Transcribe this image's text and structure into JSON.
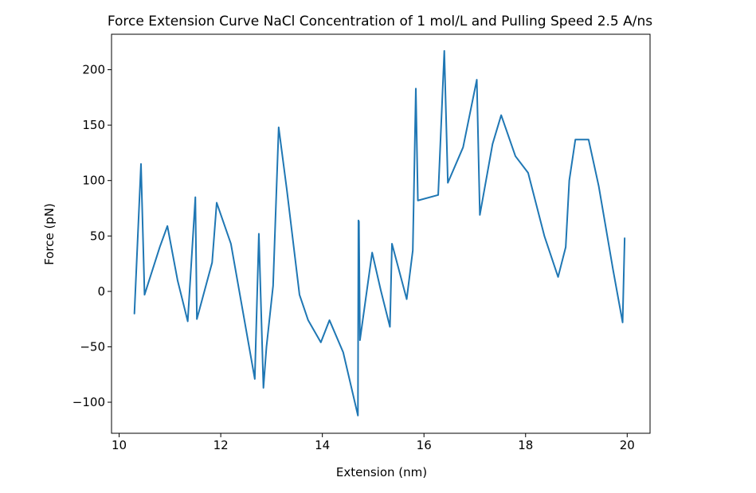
{
  "chart_data": {
    "type": "line",
    "title": "Force Extension Curve NaCl Concentration of 1 mol/L and Pulling Speed 2.5 A/ns",
    "xlabel": "Extension (nm)",
    "ylabel": "Force (pN)",
    "xlim": [
      9.85,
      20.45
    ],
    "ylim": [
      -128,
      232
    ],
    "xticks": [
      10,
      12,
      14,
      16,
      18,
      20
    ],
    "yticks": [
      -100,
      -50,
      0,
      50,
      100,
      150,
      200
    ],
    "xtick_labels": [
      "10",
      "12",
      "14",
      "16",
      "18",
      "20"
    ],
    "ytick_labels": [
      "−100",
      "−50",
      "0",
      "50",
      "100",
      "150",
      "200"
    ],
    "grid": false,
    "series_color": "#1f77b4",
    "series": [
      {
        "x": [
          10.3,
          10.43,
          10.5,
          10.8,
          10.95,
          11.15,
          11.35,
          11.5,
          11.53,
          11.83,
          11.92,
          12.2,
          12.67,
          12.75,
          12.84,
          12.9,
          13.03,
          13.14,
          13.3,
          13.45,
          13.55,
          13.72,
          13.97,
          14.14,
          14.41,
          14.7,
          14.71,
          14.72,
          14.74,
          14.98,
          15.15,
          15.33,
          15.37,
          15.66,
          15.78,
          15.84,
          15.88,
          16.28,
          16.4,
          16.47,
          16.77,
          17.04,
          17.1,
          17.35,
          17.52,
          17.8,
          18.05,
          18.37,
          18.64,
          18.79,
          18.86,
          18.98,
          19.24,
          19.44,
          19.72,
          19.91,
          19.95
        ],
        "y": [
          -20,
          115,
          -3,
          40,
          59,
          10,
          -27,
          85,
          -25,
          26,
          80,
          43,
          -79,
          52,
          -87,
          -50,
          5,
          148,
          92,
          35,
          -3,
          -26,
          -46,
          -26,
          -55,
          -112,
          64,
          63,
          -44,
          35,
          1,
          -32,
          43,
          -7,
          37,
          183,
          82,
          87,
          217,
          98,
          130,
          191,
          69,
          133,
          159,
          122,
          107,
          50,
          13,
          40,
          100,
          137,
          137,
          95,
          20,
          -28,
          48
        ]
      }
    ]
  }
}
